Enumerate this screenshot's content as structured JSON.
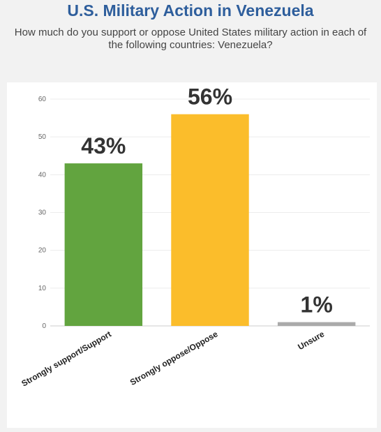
{
  "title": "U.S. Military Action in Venezuela",
  "subtitle": "How much do you support or oppose United States military action in each of the following countries: Venezuela?",
  "colors": {
    "title": "#2e5e9c",
    "support": "#62a43f",
    "oppose": "#fbbd2b",
    "unsure": "#aaaaaa"
  },
  "chart_data": {
    "type": "bar",
    "categories": [
      "Strongly support/Support",
      "Strongly oppose/Oppose",
      "Unsure"
    ],
    "values": [
      43,
      56,
      1
    ],
    "data_labels": [
      "43%",
      "56%",
      "1%"
    ],
    "bar_colors": [
      "#62a43f",
      "#fbbd2b",
      "#aaaaaa"
    ],
    "yticks": [
      0,
      10,
      20,
      30,
      40,
      50,
      60
    ],
    "ylim": [
      0,
      60
    ],
    "grid": true,
    "legend": "none"
  }
}
